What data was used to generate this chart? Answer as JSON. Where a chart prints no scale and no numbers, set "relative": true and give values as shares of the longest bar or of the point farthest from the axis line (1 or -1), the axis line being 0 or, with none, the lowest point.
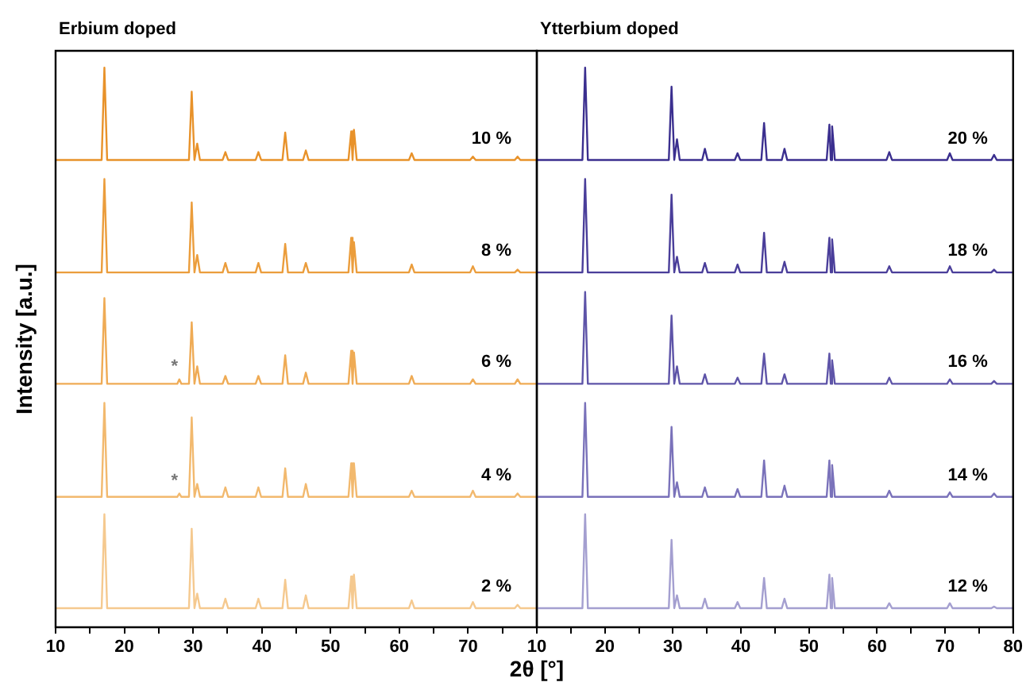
{
  "chart_data": [
    {
      "type": "line",
      "title": "Erbium doped",
      "ylabel": "Intensity [a.u.]",
      "xlabel": "2θ [°]",
      "relative": true,
      "marker": "none",
      "line_style": "solid",
      "x": [
        10,
        16.7,
        17.1,
        17.5,
        27.7,
        28.0,
        28.3,
        29.4,
        29.8,
        30.2,
        30.6,
        31.0,
        34.3,
        34.7,
        35.1,
        39.1,
        39.5,
        39.9,
        43.0,
        43.4,
        43.8,
        46.0,
        46.4,
        46.8,
        52.6,
        53.0,
        53.2,
        53.4,
        53.8,
        61.4,
        61.8,
        62.2,
        70.3,
        70.7,
        71.1,
        76.8,
        77.2,
        77.6,
        80
      ],
      "xlim": [
        10,
        80
      ],
      "xticks": [
        10,
        {
          "value": 15,
          "label": null
        },
        20,
        {
          "value": 25,
          "label": null
        },
        30,
        {
          "value": 35,
          "label": null
        },
        40,
        {
          "value": 45,
          "label": null
        },
        50,
        {
          "value": 55,
          "label": null
        },
        60,
        {
          "value": 65,
          "label": null
        },
        70,
        {
          "value": 75,
          "label": null
        },
        {
          "value": 80,
          "label": null
        }
      ],
      "annotations": [
        {
          "text": "*",
          "x": 28,
          "y": 0.443
        },
        {
          "text": "*",
          "x": 28,
          "y": 0.239
        }
      ],
      "series": [
        {
          "name": "10 %",
          "color": "#e8922a",
          "values": [
            0.835,
            0.835,
            1,
            0.835,
            0.835,
            0.835,
            0.835,
            0.835,
            0.957,
            0.835,
            0.864,
            0.835,
            0.835,
            0.849,
            0.835,
            0.835,
            0.849,
            0.835,
            0.835,
            0.884,
            0.835,
            0.835,
            0.852,
            0.835,
            0.835,
            0.886,
            0.835,
            0.889,
            0.835,
            0.835,
            0.847,
            0.835,
            0.835,
            0.841,
            0.835,
            0.835,
            0.841,
            0.835,
            0.835
          ]
        },
        {
          "name": "8 %",
          "color": "#eb9d3c",
          "values": [
            0.634,
            0.634,
            0.801,
            0.634,
            0.634,
            0.634,
            0.634,
            0.634,
            0.759,
            0.634,
            0.665,
            0.634,
            0.634,
            0.651,
            0.634,
            0.634,
            0.651,
            0.634,
            0.634,
            0.685,
            0.634,
            0.634,
            0.651,
            0.634,
            0.634,
            0.696,
            0.634,
            0.688,
            0.634,
            0.634,
            0.648,
            0.634,
            0.634,
            0.645,
            0.634,
            0.634,
            0.639,
            0.634,
            0.634
          ]
        },
        {
          "name": "6 %",
          "color": "#efab55",
          "values": [
            0.435,
            0.435,
            0.588,
            0.435,
            0.435,
            0.443,
            0.435,
            0.435,
            0.545,
            0.435,
            0.466,
            0.435,
            0.435,
            0.449,
            0.435,
            0.435,
            0.449,
            0.435,
            0.435,
            0.486,
            0.435,
            0.435,
            0.455,
            0.435,
            0.435,
            0.494,
            0.435,
            0.491,
            0.435,
            0.435,
            0.449,
            0.435,
            0.435,
            0.443,
            0.435,
            0.435,
            0.443,
            0.435,
            0.435
          ]
        },
        {
          "name": "4 %",
          "color": "#f2b96e",
          "values": [
            0.233,
            0.233,
            0.401,
            0.233,
            0.233,
            0.239,
            0.233,
            0.233,
            0.375,
            0.233,
            0.256,
            0.233,
            0.233,
            0.25,
            0.233,
            0.233,
            0.25,
            0.233,
            0.233,
            0.284,
            0.233,
            0.233,
            0.256,
            0.233,
            0.233,
            0.293,
            0.233,
            0.293,
            0.233,
            0.233,
            0.244,
            0.233,
            0.233,
            0.244,
            0.233,
            0.233,
            0.239,
            0.233,
            0.233
          ]
        },
        {
          "name": "2 %",
          "color": "#f5c98f",
          "values": [
            0.034,
            0.034,
            0.202,
            0.034,
            0.034,
            0.034,
            0.034,
            0.034,
            0.176,
            0.034,
            0.06,
            0.034,
            0.034,
            0.051,
            0.034,
            0.034,
            0.051,
            0.034,
            0.034,
            0.085,
            0.034,
            0.034,
            0.057,
            0.034,
            0.034,
            0.091,
            0.034,
            0.094,
            0.034,
            0.034,
            0.048,
            0.034,
            0.034,
            0.045,
            0.034,
            0.034,
            0.04,
            0.034,
            0.034
          ]
        }
      ]
    },
    {
      "type": "line",
      "title": "Ytterbium doped",
      "relative": true,
      "marker": "none",
      "line_style": "solid",
      "x": [
        10,
        16.7,
        17.1,
        17.5,
        27.7,
        28.0,
        28.3,
        29.4,
        29.8,
        30.2,
        30.6,
        31.0,
        34.3,
        34.7,
        35.1,
        39.1,
        39.5,
        39.9,
        43.0,
        43.4,
        43.8,
        46.0,
        46.4,
        46.8,
        52.6,
        53.0,
        53.2,
        53.4,
        53.8,
        61.4,
        61.8,
        62.2,
        70.3,
        70.7,
        71.1,
        76.8,
        77.2,
        77.6,
        80
      ],
      "xlim": [
        10,
        80
      ],
      "xticks": [
        10,
        {
          "value": 15,
          "label": null
        },
        20,
        {
          "value": 25,
          "label": null
        },
        30,
        {
          "value": 35,
          "label": null
        },
        40,
        {
          "value": 45,
          "label": null
        },
        50,
        {
          "value": 55,
          "label": null
        },
        60,
        {
          "value": 65,
          "label": null
        },
        70,
        {
          "value": 75,
          "label": null
        },
        80
      ],
      "series": [
        {
          "name": "20 %",
          "color": "#3b2f8f",
          "values": [
            0.835,
            0.835,
            1,
            0.835,
            0.835,
            0.835,
            0.835,
            0.835,
            0.966,
            0.835,
            0.872,
            0.835,
            0.835,
            0.855,
            0.835,
            0.835,
            0.847,
            0.835,
            0.835,
            0.901,
            0.835,
            0.835,
            0.855,
            0.835,
            0.835,
            0.898,
            0.835,
            0.895,
            0.835,
            0.835,
            0.849,
            0.835,
            0.835,
            0.847,
            0.835,
            0.835,
            0.844,
            0.835,
            0.835
          ]
        },
        {
          "name": "18 %",
          "color": "#4a3e9a",
          "values": [
            0.634,
            0.634,
            0.801,
            0.634,
            0.634,
            0.634,
            0.634,
            0.634,
            0.773,
            0.634,
            0.662,
            0.634,
            0.634,
            0.651,
            0.634,
            0.634,
            0.648,
            0.634,
            0.634,
            0.705,
            0.634,
            0.634,
            0.653,
            0.634,
            0.634,
            0.696,
            0.634,
            0.693,
            0.634,
            0.634,
            0.645,
            0.634,
            0.634,
            0.645,
            0.634,
            0.634,
            0.639,
            0.634,
            0.634
          ]
        },
        {
          "name": "16 %",
          "color": "#5e54a8",
          "values": [
            0.435,
            0.435,
            0.599,
            0.435,
            0.435,
            0.435,
            0.435,
            0.435,
            0.557,
            0.435,
            0.466,
            0.435,
            0.435,
            0.452,
            0.435,
            0.435,
            0.446,
            0.435,
            0.435,
            0.489,
            0.435,
            0.435,
            0.452,
            0.435,
            0.435,
            0.489,
            0.435,
            0.477,
            0.435,
            0.435,
            0.446,
            0.435,
            0.435,
            0.443,
            0.435,
            0.435,
            0.44,
            0.435,
            0.435
          ]
        },
        {
          "name": "14 %",
          "color": "#7a72ba",
          "values": [
            0.233,
            0.233,
            0.401,
            0.233,
            0.233,
            0.233,
            0.233,
            0.233,
            0.358,
            0.233,
            0.259,
            0.233,
            0.233,
            0.25,
            0.233,
            0.233,
            0.247,
            0.233,
            0.233,
            0.298,
            0.233,
            0.233,
            0.253,
            0.233,
            0.233,
            0.298,
            0.233,
            0.29,
            0.233,
            0.233,
            0.244,
            0.233,
            0.233,
            0.241,
            0.233,
            0.233,
            0.239,
            0.233,
            0.233
          ]
        },
        {
          "name": "12 %",
          "color": "#a49fd0",
          "values": [
            0.034,
            0.034,
            0.202,
            0.034,
            0.034,
            0.034,
            0.034,
            0.034,
            0.156,
            0.034,
            0.057,
            0.034,
            0.034,
            0.051,
            0.034,
            0.034,
            0.045,
            0.034,
            0.034,
            0.088,
            0.034,
            0.034,
            0.051,
            0.034,
            0.034,
            0.094,
            0.034,
            0.088,
            0.034,
            0.034,
            0.043,
            0.034,
            0.034,
            0.043,
            0.034,
            0.034,
            0.037,
            0.034,
            0.034
          ]
        }
      ]
    }
  ]
}
